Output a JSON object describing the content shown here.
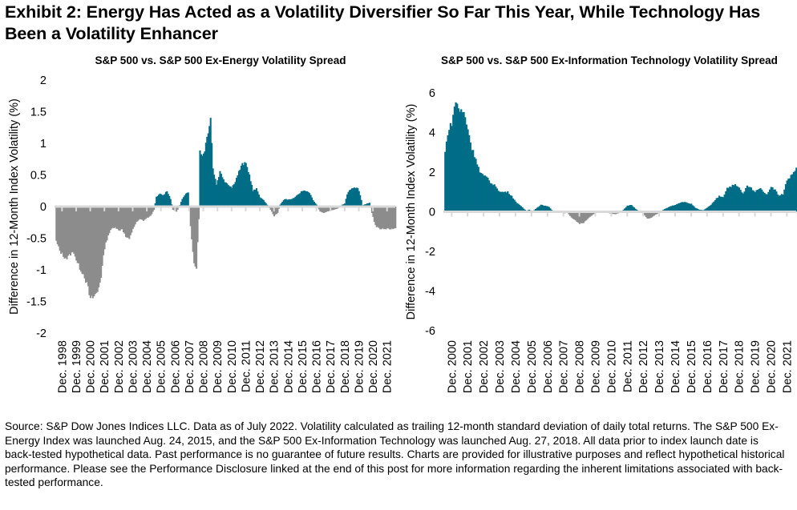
{
  "title": "Exhibit 2: Energy Has Acted as a Volatility Diversifier So Far This Year, While Technology Has Been a Volatility Enhancer",
  "footnote": "Source: S&P Dow Jones Indices LLC. Data as of July 2022. Volatility calculated as trailing 12-month standard deviation of daily total returns. The S&P 500 Ex-Energy Index was launched Aug. 24, 2015, and the S&P 500 Ex-Information Technology was launched Aug. 27, 2018. All data prior to index launch date is back-tested hypothetical data. Past performance is no guarantee of future results. Charts are provided for illustrative purposes and reflect hypothetical historical performance. Please see the Performance Disclosure linked at the end of this post for more information regarding the inherent limitations associated with back-tested performance.",
  "colors": {
    "positive": "#006D87",
    "negative": "#8C8C8C",
    "axis": "#D9D9D9"
  },
  "chart_data": [
    {
      "type": "area",
      "title": "S&P 500 vs. S&P 500 Ex-Energy Volatility Spread",
      "xlabel": "",
      "ylabel": "Difference in 12-Month Index Volatility (%)",
      "ylim": [
        -2,
        2
      ],
      "yticks": [
        2,
        1.5,
        1,
        0.5,
        0,
        -0.5,
        -1,
        -1.5,
        -2
      ],
      "ytick_labels": [
        "2",
        "1.5",
        "1",
        "0.5",
        "0",
        "-0.5",
        "-1",
        "-1.5",
        "-2"
      ],
      "x_start": "1998-07",
      "x_end": "2022-07",
      "xtick_labels": [
        "Dec. 1998",
        "Dec. 1999",
        "Dec. 2000",
        "Dec. 2001",
        "Dec. 2002",
        "Dec. 2003",
        "Dec. 2004",
        "Dec. 2005",
        "Dec. 2006",
        "Dec. 2007",
        "Dec. 2008",
        "Dec. 2009",
        "Dec. 2010",
        "Dec. 2011",
        "Dec. 2012",
        "Dec. 2013",
        "Dec. 2014",
        "Dec. 2015",
        "Dec. 2016",
        "Dec. 2017",
        "Dec. 2018",
        "Dec. 2019",
        "Dec. 2020",
        "Dec. 2021"
      ],
      "grid": false,
      "legend": "none",
      "series_anchor_points": [
        [
          "1998-07",
          -0.55
        ],
        [
          "1998-10",
          -0.7
        ],
        [
          "1999-01",
          -0.78
        ],
        [
          "1999-04",
          -0.82
        ],
        [
          "1999-07",
          -0.75
        ],
        [
          "1999-10",
          -0.72
        ],
        [
          "2000-01",
          -0.9
        ],
        [
          "2000-04",
          -1.0
        ],
        [
          "2000-07",
          -1.1
        ],
        [
          "2000-10",
          -1.3
        ],
        [
          "2000-12",
          -1.48
        ],
        [
          "2001-03",
          -1.42
        ],
        [
          "2001-06",
          -1.35
        ],
        [
          "2001-09",
          -1.1
        ],
        [
          "2001-12",
          -0.65
        ],
        [
          "2002-03",
          -0.45
        ],
        [
          "2002-06",
          -0.35
        ],
        [
          "2002-09",
          -0.32
        ],
        [
          "2002-12",
          -0.38
        ],
        [
          "2003-03",
          -0.35
        ],
        [
          "2003-06",
          -0.48
        ],
        [
          "2003-09",
          -0.52
        ],
        [
          "2003-12",
          -0.35
        ],
        [
          "2004-03",
          -0.25
        ],
        [
          "2004-06",
          -0.2
        ],
        [
          "2004-09",
          -0.22
        ],
        [
          "2004-12",
          -0.18
        ],
        [
          "2005-03",
          -0.15
        ],
        [
          "2005-06",
          -0.05
        ],
        [
          "2005-08",
          0.15
        ],
        [
          "2005-11",
          0.2
        ],
        [
          "2006-02",
          0.18
        ],
        [
          "2006-05",
          0.25
        ],
        [
          "2006-08",
          0.12
        ],
        [
          "2006-10",
          -0.05
        ],
        [
          "2007-01",
          -0.08
        ],
        [
          "2007-03",
          -0.02
        ],
        [
          "2007-06",
          0.12
        ],
        [
          "2007-09",
          0.2
        ],
        [
          "2007-11",
          0.22
        ],
        [
          "2008-01",
          -0.3
        ],
        [
          "2008-04",
          -0.9
        ],
        [
          "2008-06",
          -0.95
        ],
        [
          "2008-08",
          -0.2
        ],
        [
          "2008-09",
          0.9
        ],
        [
          "2008-11",
          0.8
        ],
        [
          "2009-01",
          0.9
        ],
        [
          "2009-04",
          1.2
        ],
        [
          "2009-06",
          1.42
        ],
        [
          "2009-08",
          0.6
        ],
        [
          "2009-11",
          0.35
        ],
        [
          "2010-02",
          0.55
        ],
        [
          "2010-06",
          0.4
        ],
        [
          "2010-09",
          0.35
        ],
        [
          "2010-12",
          0.3
        ],
        [
          "2011-03",
          0.4
        ],
        [
          "2011-06",
          0.55
        ],
        [
          "2011-09",
          0.67
        ],
        [
          "2011-12",
          0.68
        ],
        [
          "2012-03",
          0.5
        ],
        [
          "2012-06",
          0.25
        ],
        [
          "2012-09",
          0.28
        ],
        [
          "2012-12",
          0.15
        ],
        [
          "2013-03",
          0.1
        ],
        [
          "2013-06",
          0.03
        ],
        [
          "2013-09",
          -0.05
        ],
        [
          "2013-12",
          -0.15
        ],
        [
          "2014-03",
          -0.1
        ],
        [
          "2014-05",
          0.03
        ],
        [
          "2014-09",
          0.12
        ],
        [
          "2014-12",
          0.11
        ],
        [
          "2015-03",
          0.12
        ],
        [
          "2015-06",
          0.15
        ],
        [
          "2015-09",
          0.2
        ],
        [
          "2015-12",
          0.25
        ],
        [
          "2016-03",
          0.25
        ],
        [
          "2016-06",
          0.22
        ],
        [
          "2016-09",
          0.1
        ],
        [
          "2016-12",
          0.03
        ],
        [
          "2017-03",
          -0.08
        ],
        [
          "2017-06",
          -0.1
        ],
        [
          "2017-09",
          -0.08
        ],
        [
          "2017-12",
          -0.06
        ],
        [
          "2018-03",
          -0.05
        ],
        [
          "2018-06",
          -0.03
        ],
        [
          "2018-09",
          0.02
        ],
        [
          "2018-12",
          0.05
        ],
        [
          "2019-02",
          0.2
        ],
        [
          "2019-05",
          0.28
        ],
        [
          "2019-08",
          0.3
        ],
        [
          "2019-11",
          0.3
        ],
        [
          "2020-01",
          0.18
        ],
        [
          "2020-03",
          0.02
        ],
        [
          "2020-06",
          0.04
        ],
        [
          "2020-09",
          0.06
        ],
        [
          "2020-11",
          -0.1
        ],
        [
          "2021-02",
          -0.3
        ],
        [
          "2021-05",
          -0.35
        ],
        [
          "2022-07",
          -0.35
        ]
      ]
    },
    {
      "type": "area",
      "title": "S&P 500 vs. S&P 500 Ex-Information Technology Volatility Spread",
      "xlabel": "",
      "ylabel": "Difference in 12-Month Index Volatility (%)",
      "ylim": [
        -6,
        6
      ],
      "yticks": [
        6,
        4,
        2,
        0,
        -2,
        -4,
        -6
      ],
      "ytick_labels": [
        "6",
        "4",
        "2",
        "0",
        "-2",
        "-4",
        "-6"
      ],
      "x_start": "2000-07",
      "x_end": "2022-07",
      "xtick_labels": [
        "Dec. 2000",
        "Dec. 2001",
        "Dec. 2002",
        "Dec. 2003",
        "Dec. 2004",
        "Dec. 2005",
        "Dec. 2006",
        "Dec. 2007",
        "Dec. 2008",
        "Dec. 2009",
        "Dec. 2010",
        "Dec. 2011",
        "Dec. 2012",
        "Dec. 2013",
        "Dec. 2014",
        "Dec. 2015",
        "Dec. 2016",
        "Dec. 2017",
        "Dec. 2018",
        "Dec. 2019",
        "Dec. 2020",
        "Dec. 2021"
      ],
      "grid": false,
      "legend": "none",
      "series_anchor_points": [
        [
          "2000-07",
          3.0
        ],
        [
          "2000-09",
          4.0
        ],
        [
          "2000-12",
          4.5
        ],
        [
          "2001-03",
          5.6
        ],
        [
          "2001-06",
          5.1
        ],
        [
          "2001-09",
          5.0
        ],
        [
          "2001-12",
          4.2
        ],
        [
          "2002-03",
          3.2
        ],
        [
          "2002-06",
          2.7
        ],
        [
          "2002-09",
          2.0
        ],
        [
          "2002-12",
          1.8
        ],
        [
          "2003-03",
          1.7
        ],
        [
          "2003-06",
          1.4
        ],
        [
          "2003-09",
          1.3
        ],
        [
          "2003-12",
          1.0
        ],
        [
          "2004-03",
          1.0
        ],
        [
          "2004-06",
          1.0
        ],
        [
          "2004-09",
          0.8
        ],
        [
          "2004-12",
          0.5
        ],
        [
          "2005-03",
          0.35
        ],
        [
          "2005-06",
          0.15
        ],
        [
          "2005-08",
          0.05
        ],
        [
          "2005-10",
          0.1
        ],
        [
          "2006-01",
          0.03
        ],
        [
          "2006-04",
          0.2
        ],
        [
          "2006-07",
          0.35
        ],
        [
          "2006-10",
          0.3
        ],
        [
          "2007-01",
          0.25
        ],
        [
          "2007-03",
          0.1
        ],
        [
          "2007-06",
          -0.05
        ],
        [
          "2007-09",
          0.05
        ],
        [
          "2007-12",
          -0.08
        ],
        [
          "2008-03",
          -0.05
        ],
        [
          "2008-06",
          -0.3
        ],
        [
          "2008-09",
          -0.45
        ],
        [
          "2008-12",
          -0.6
        ],
        [
          "2009-03",
          -0.55
        ],
        [
          "2009-06",
          -0.35
        ],
        [
          "2009-09",
          -0.2
        ],
        [
          "2009-12",
          -0.05
        ],
        [
          "2010-03",
          0.02
        ],
        [
          "2010-06",
          0.03
        ],
        [
          "2010-09",
          -0.05
        ],
        [
          "2010-12",
          -0.1
        ],
        [
          "2011-03",
          -0.12
        ],
        [
          "2011-06",
          -0.06
        ],
        [
          "2011-09",
          0.1
        ],
        [
          "2011-12",
          0.3
        ],
        [
          "2012-03",
          0.35
        ],
        [
          "2012-06",
          0.15
        ],
        [
          "2012-09",
          0.02
        ],
        [
          "2012-12",
          -0.1
        ],
        [
          "2013-03",
          -0.35
        ],
        [
          "2013-06",
          -0.3
        ],
        [
          "2013-09",
          -0.15
        ],
        [
          "2013-12",
          -0.05
        ],
        [
          "2014-03",
          0.1
        ],
        [
          "2014-06",
          0.2
        ],
        [
          "2014-09",
          0.3
        ],
        [
          "2014-12",
          0.35
        ],
        [
          "2015-03",
          0.45
        ],
        [
          "2015-06",
          0.5
        ],
        [
          "2015-09",
          0.45
        ],
        [
          "2015-12",
          0.4
        ],
        [
          "2016-03",
          0.2
        ],
        [
          "2016-06",
          0.1
        ],
        [
          "2016-09",
          0.08
        ],
        [
          "2016-12",
          0.2
        ],
        [
          "2017-03",
          0.35
        ],
        [
          "2017-06",
          0.6
        ],
        [
          "2017-09",
          0.8
        ],
        [
          "2017-12",
          0.75
        ],
        [
          "2018-03",
          1.2
        ],
        [
          "2018-06",
          1.3
        ],
        [
          "2018-09",
          1.35
        ],
        [
          "2018-12",
          1.2
        ],
        [
          "2019-03",
          0.9
        ],
        [
          "2019-06",
          1.3
        ],
        [
          "2019-09",
          1.2
        ],
        [
          "2019-12",
          1.0
        ],
        [
          "2020-03",
          1.2
        ],
        [
          "2020-06",
          1.05
        ],
        [
          "2020-09",
          0.85
        ],
        [
          "2020-12",
          1.3
        ],
        [
          "2021-03",
          1.1
        ],
        [
          "2021-06",
          0.8
        ],
        [
          "2021-09",
          0.9
        ],
        [
          "2021-12",
          1.6
        ],
        [
          "2022-03",
          1.8
        ],
        [
          "2022-07",
          2.2
        ]
      ]
    }
  ]
}
